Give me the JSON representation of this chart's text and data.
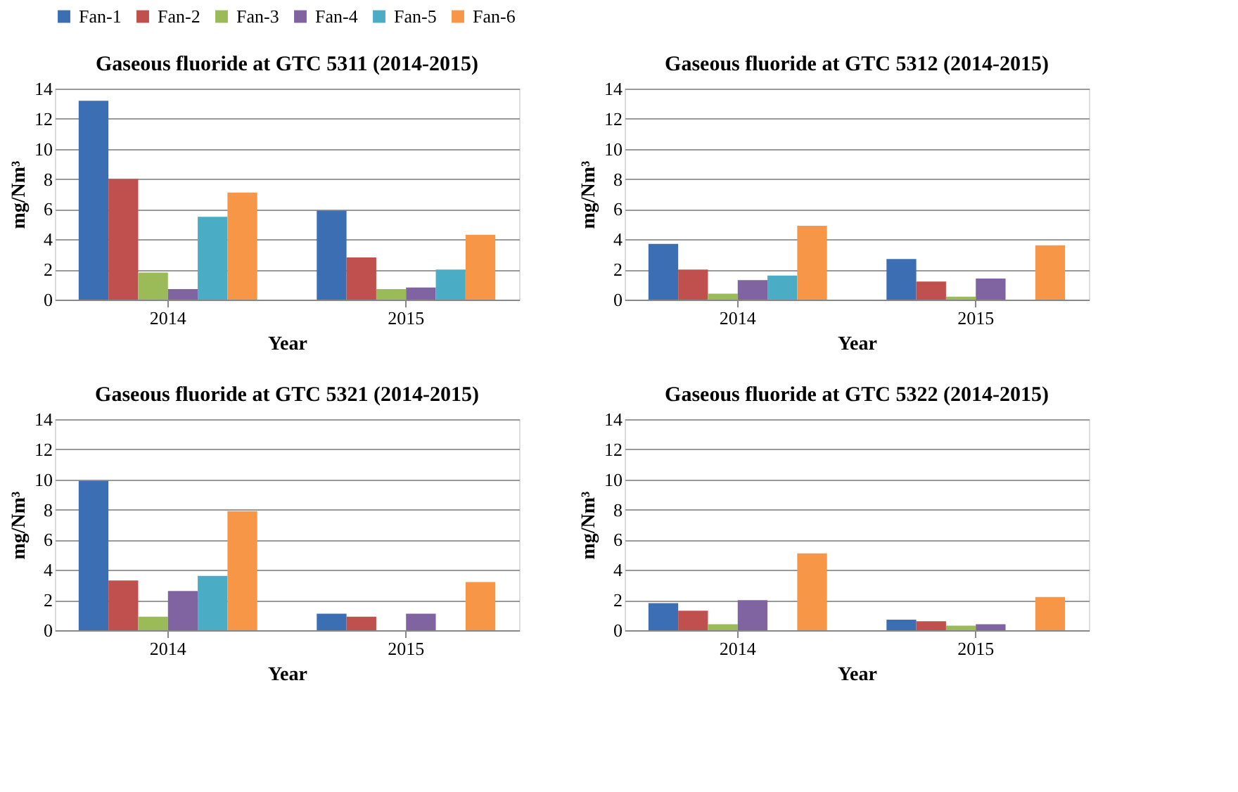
{
  "chart_data": [
    {
      "type": "bar",
      "title": "Gaseous fluoride at GTC 5311 (2014-2015)",
      "xlabel": "Year",
      "ylabel": "mg/Nm³",
      "categories": [
        "2014",
        "2015"
      ],
      "ylim": [
        0,
        14
      ],
      "yticks": [
        0,
        2,
        4,
        6,
        8,
        10,
        12,
        14
      ],
      "grid": "y",
      "legend": "top",
      "series": [
        {
          "name": "Fan-1",
          "color": "#3c6eb4",
          "values": [
            13.2,
            5.9
          ]
        },
        {
          "name": "Fan-2",
          "color": "#c0504d",
          "values": [
            8.0,
            2.8
          ]
        },
        {
          "name": "Fan-3",
          "color": "#9bbb59",
          "values": [
            1.8,
            0.7
          ]
        },
        {
          "name": "Fan-4",
          "color": "#8064a2",
          "values": [
            0.7,
            0.8
          ]
        },
        {
          "name": "Fan-5",
          "color": "#4bacc6",
          "values": [
            5.5,
            2.0
          ]
        },
        {
          "name": "Fan-6",
          "color": "#f79646",
          "values": [
            7.1,
            4.3
          ]
        }
      ]
    },
    {
      "type": "bar",
      "title": "Gaseous fluoride at GTC 5312 (2014-2015)",
      "xlabel": "Year",
      "ylabel": "mg/Nm³",
      "categories": [
        "2014",
        "2015"
      ],
      "ylim": [
        0,
        14
      ],
      "yticks": [
        0,
        2,
        4,
        6,
        8,
        10,
        12,
        14
      ],
      "grid": "y",
      "legend": "top",
      "series": [
        {
          "name": "Fan-1",
          "color": "#3c6eb4",
          "values": [
            3.7,
            2.7
          ]
        },
        {
          "name": "Fan-2",
          "color": "#c0504d",
          "values": [
            2.0,
            1.2
          ]
        },
        {
          "name": "Fan-3",
          "color": "#9bbb59",
          "values": [
            0.4,
            0.2
          ]
        },
        {
          "name": "Fan-4",
          "color": "#8064a2",
          "values": [
            1.3,
            1.4
          ]
        },
        {
          "name": "Fan-5",
          "color": "#4bacc6",
          "values": [
            1.6,
            null
          ]
        },
        {
          "name": "Fan-6",
          "color": "#f79646",
          "values": [
            4.9,
            3.6
          ]
        }
      ]
    },
    {
      "type": "bar",
      "title": "Gaseous fluoride at GTC 5321 (2014-2015)",
      "xlabel": "Year",
      "ylabel": "mg/Nm³",
      "categories": [
        "2014",
        "2015"
      ],
      "ylim": [
        0,
        14
      ],
      "yticks": [
        0,
        2,
        4,
        6,
        8,
        10,
        12,
        14
      ],
      "grid": "y",
      "legend": "top",
      "series": [
        {
          "name": "Fan-1",
          "color": "#3c6eb4",
          "values": [
            9.9,
            1.1
          ]
        },
        {
          "name": "Fan-2",
          "color": "#c0504d",
          "values": [
            3.3,
            0.9
          ]
        },
        {
          "name": "Fan-3",
          "color": "#9bbb59",
          "values": [
            0.9,
            null
          ]
        },
        {
          "name": "Fan-4",
          "color": "#8064a2",
          "values": [
            2.6,
            1.1
          ]
        },
        {
          "name": "Fan-5",
          "color": "#4bacc6",
          "values": [
            3.6,
            null
          ]
        },
        {
          "name": "Fan-6",
          "color": "#f79646",
          "values": [
            7.9,
            3.2
          ]
        }
      ]
    },
    {
      "type": "bar",
      "title": "Gaseous fluoride at GTC 5322 (2014-2015)",
      "xlabel": "Year",
      "ylabel": "mg/Nm³",
      "categories": [
        "2014",
        "2015"
      ],
      "ylim": [
        0,
        14
      ],
      "yticks": [
        0,
        2,
        4,
        6,
        8,
        10,
        12,
        14
      ],
      "grid": "y",
      "legend": "top",
      "series": [
        {
          "name": "Fan-1",
          "color": "#3c6eb4",
          "values": [
            1.8,
            0.7
          ]
        },
        {
          "name": "Fan-2",
          "color": "#c0504d",
          "values": [
            1.3,
            0.6
          ]
        },
        {
          "name": "Fan-3",
          "color": "#9bbb59",
          "values": [
            0.4,
            0.3
          ]
        },
        {
          "name": "Fan-4",
          "color": "#8064a2",
          "values": [
            2.0,
            0.4
          ]
        },
        {
          "name": "Fan-5",
          "color": "#4bacc6",
          "values": [
            null,
            null
          ]
        },
        {
          "name": "Fan-6",
          "color": "#f79646",
          "values": [
            5.1,
            2.2
          ]
        }
      ]
    }
  ]
}
